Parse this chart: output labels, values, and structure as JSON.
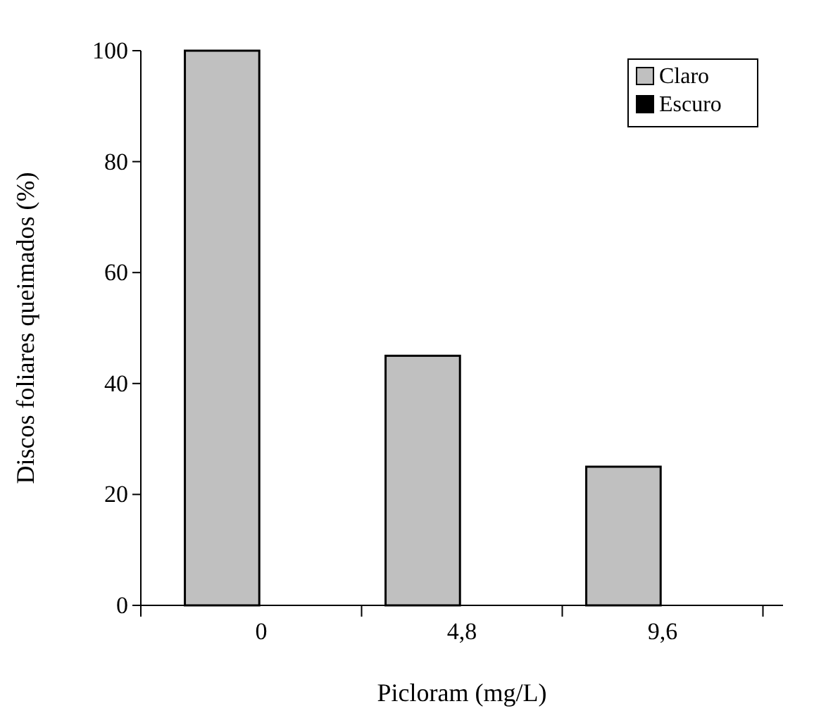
{
  "chart_data": {
    "type": "bar",
    "xlabel": "Picloram (mg/L)",
    "ylabel": "Discos foliares queimados (%)",
    "categories": [
      "0",
      "4,8",
      "9,6"
    ],
    "series": [
      {
        "name": "Claro",
        "color": "#c0c0c0",
        "values": [
          100,
          45,
          25
        ]
      },
      {
        "name": "Escuro",
        "color": "#000000",
        "values": [
          0,
          0,
          0
        ]
      }
    ],
    "ylim": [
      0,
      100
    ],
    "yticks": [
      0,
      20,
      40,
      60,
      80,
      100
    ],
    "grid": false,
    "legend": "top right"
  }
}
